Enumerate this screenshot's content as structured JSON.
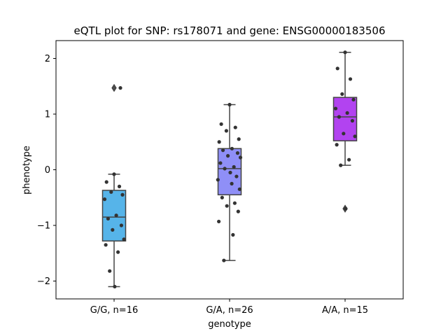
{
  "chart_data": {
    "type": "box",
    "title": "eQTL plot for SNP: rs178071 and gene: ENSG00000183506",
    "xlabel": "genotype",
    "ylabel": "phenotype",
    "ylim": [
      -2.3,
      2.3
    ],
    "yticks": [
      -2,
      -1,
      0,
      1,
      2
    ],
    "ytick_labels": [
      "−2",
      "−1",
      "0",
      "1",
      "2"
    ],
    "grid": false,
    "categories": [
      "G/G, n=16",
      "G/A, n=26",
      "A/A, n=15"
    ],
    "groups": [
      {
        "name": "G/G, n=16",
        "color": "#56b4e9",
        "box": {
          "q1": -1.28,
          "median": -0.85,
          "q3": -0.37,
          "whisker_low": -2.1,
          "whisker_high": -0.08
        },
        "outliers": [
          1.47
        ],
        "points": [
          -0.08,
          -0.22,
          -0.3,
          -0.4,
          -0.45,
          -0.53,
          -0.82,
          -0.88,
          -1.0,
          -1.08,
          -1.25,
          -1.35,
          -1.48,
          -1.82,
          -2.1,
          1.47
        ]
      },
      {
        "name": "G/A, n=26",
        "color": "#8f8ff7",
        "box": {
          "q1": -0.45,
          "median": 0.02,
          "q3": 0.38,
          "whisker_low": -1.63,
          "whisker_high": 1.17
        },
        "outliers": [],
        "points": [
          1.17,
          0.82,
          0.76,
          0.7,
          0.55,
          0.5,
          0.38,
          0.35,
          0.3,
          0.25,
          0.22,
          0.12,
          0.05,
          0.02,
          -0.05,
          -0.12,
          -0.18,
          -0.25,
          -0.35,
          -0.5,
          -0.6,
          -0.65,
          -0.75,
          -0.93,
          -1.17,
          -1.63
        ]
      },
      {
        "name": "A/A, n=15",
        "color": "#b243f0",
        "box": {
          "q1": 0.52,
          "median": 0.95,
          "q3": 1.3,
          "whisker_low": 0.08,
          "whisker_high": 2.11
        },
        "outliers": [
          -0.7
        ],
        "points": [
          2.11,
          1.82,
          1.63,
          1.36,
          1.26,
          1.1,
          1.02,
          0.95,
          0.88,
          0.65,
          0.6,
          0.45,
          0.18,
          0.08,
          -0.7
        ]
      }
    ]
  }
}
